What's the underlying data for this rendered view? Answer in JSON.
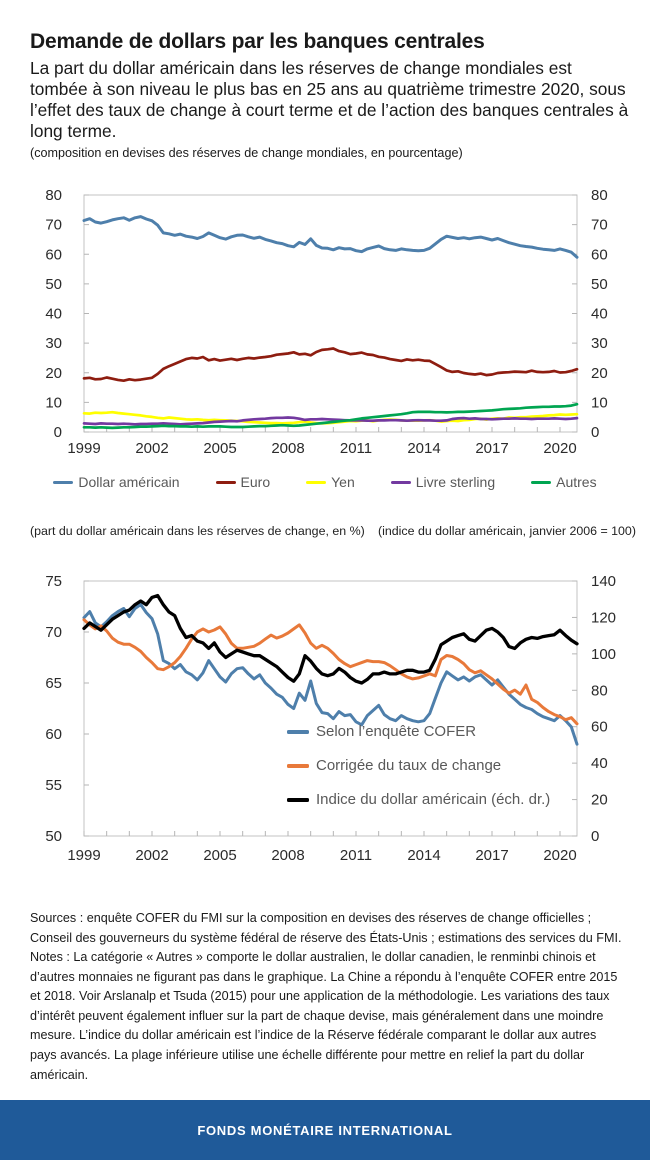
{
  "header": {
    "title": "Demande de dollars par les banques centrales",
    "subtitle": "La part du dollar américain dans les réserves de change mondiales est tombée à son niveau le plus bas en 25 ans au quatrième trimestre 2020, sous l’effet des taux de change à court terme et de l’action des banques centrales à long terme.",
    "note": "(composition en devises des réserves de change mondiales, en pourcentage)"
  },
  "captions": {
    "left": "(part du dollar américain dans les réserves de change, en %)",
    "right": "(indice du dollar américain, janvier 2006 = 100)"
  },
  "footnotes": {
    "sources": "Sources : enquête COFER du FMI sur la composition en devises des réserves de change officielles ; Conseil des gouverneurs du système fédéral de réserve des États-Unis ;  estimations des services du FMI.",
    "notes": "Notes : La catégorie « Autres » comporte le dollar australien, le dollar canadien, le renminbi chinois et d’autres monnaies ne figurant pas dans le graphique. La Chine a répondu à l’enquête COFER entre 2015 et 2018. Voir Arslanalp et Tsuda (2015) pour une application de la méthodologie. Les variations des taux d’intérêt peuvent également influer sur la part de chaque devise, mais généralement dans une moindre mesure. L’indice du dollar américain est l’indice de la Réserve fédérale comparant le dollar aux autres pays avancés. La plage inférieure utilise une échelle différente pour mettre en relief la part du dollar américain."
  },
  "footer": {
    "label": "FONDS MONÉTAIRE INTERNATIONAL",
    "background": "#1f5a99"
  },
  "chart_data": [
    {
      "type": "line",
      "x_frequency": "quarterly",
      "x_range": [
        "1999Q1",
        "2020Q4"
      ],
      "x_tick_labels": [
        "1999",
        "2002",
        "2005",
        "2008",
        "2011",
        "2014",
        "2017",
        "2020"
      ],
      "ylim": [
        0,
        80
      ],
      "ytick_step": 10,
      "axes_mirrored": true,
      "grid": false,
      "legend_position": "bottom",
      "series": [
        {
          "name": "Dollar américain",
          "color": "#4e7fab",
          "values": [
            71.4,
            72.0,
            70.9,
            70.5,
            71.0,
            71.6,
            72.0,
            72.3,
            71.5,
            72.3,
            72.7,
            71.9,
            71.3,
            69.8,
            67.2,
            66.9,
            66.4,
            66.8,
            66.1,
            65.8,
            65.3,
            66.0,
            67.2,
            66.4,
            65.6,
            65.1,
            65.9,
            66.4,
            66.5,
            65.9,
            65.4,
            65.8,
            65.0,
            64.5,
            63.9,
            63.6,
            62.9,
            62.5,
            64.0,
            63.3,
            65.2,
            63.0,
            62.1,
            62.0,
            61.5,
            62.2,
            61.8,
            61.9,
            61.2,
            60.9,
            61.8,
            62.3,
            62.8,
            61.9,
            61.5,
            61.3,
            61.8,
            61.5,
            61.3,
            61.2,
            61.3,
            62.0,
            63.5,
            65.0,
            66.1,
            65.7,
            65.3,
            65.6,
            65.2,
            65.6,
            65.8,
            65.3,
            64.8,
            65.3,
            64.6,
            63.9,
            63.4,
            62.9,
            62.6,
            62.4,
            62.0,
            61.7,
            61.5,
            61.3,
            61.8,
            61.3,
            60.7,
            59.0
          ]
        },
        {
          "name": "Euro",
          "color": "#8e1d10",
          "values": [
            18.1,
            18.3,
            17.8,
            17.9,
            18.4,
            18.0,
            17.6,
            17.3,
            17.8,
            17.5,
            17.7,
            18.0,
            18.3,
            19.6,
            21.3,
            22.2,
            23.0,
            23.8,
            24.6,
            25.0,
            24.8,
            25.3,
            24.2,
            24.6,
            24.1,
            24.4,
            24.7,
            24.3,
            24.7,
            25.0,
            24.8,
            25.1,
            25.3,
            25.6,
            26.1,
            26.3,
            26.5,
            26.9,
            26.2,
            26.4,
            25.9,
            27.0,
            27.7,
            27.9,
            28.2,
            27.3,
            26.9,
            26.3,
            26.5,
            26.8,
            26.2,
            26.0,
            25.4,
            25.1,
            24.6,
            24.3,
            24.0,
            24.5,
            24.2,
            24.4,
            24.1,
            24.0,
            23.0,
            21.9,
            20.8,
            20.3,
            20.5,
            19.9,
            19.6,
            19.4,
            19.7,
            19.2,
            19.4,
            19.9,
            20.1,
            20.2,
            20.4,
            20.3,
            20.2,
            20.7,
            20.3,
            20.2,
            20.3,
            20.6,
            20.1,
            20.2,
            20.6,
            21.2
          ]
        },
        {
          "name": "Yen",
          "color": "#ffff00",
          "values": [
            6.3,
            6.2,
            6.5,
            6.4,
            6.5,
            6.7,
            6.4,
            6.2,
            6.0,
            5.8,
            5.6,
            5.3,
            5.1,
            4.8,
            4.6,
            4.9,
            4.7,
            4.5,
            4.3,
            4.2,
            4.3,
            4.1,
            4.0,
            4.1,
            4.0,
            3.9,
            3.8,
            3.7,
            3.6,
            3.4,
            3.3,
            3.2,
            3.1,
            3.0,
            3.0,
            2.9,
            3.0,
            3.1,
            3.3,
            3.5,
            3.2,
            3.0,
            2.9,
            3.0,
            3.1,
            3.3,
            3.5,
            3.7,
            3.6,
            3.8,
            3.9,
            3.6,
            3.9,
            4.1,
            4.2,
            4.1,
            3.9,
            3.8,
            3.8,
            3.8,
            3.9,
            4.0,
            3.8,
            3.5,
            3.7,
            3.8,
            3.7,
            4.0,
            4.1,
            4.4,
            4.5,
            4.2,
            4.5,
            4.6,
            4.5,
            4.9,
            4.8,
            5.0,
            5.0,
            5.2,
            5.3,
            5.4,
            5.6,
            5.7,
            5.9,
            5.8,
            5.9,
            6.0
          ]
        },
        {
          "name": "Livre sterling",
          "color": "#7339a0",
          "values": [
            2.9,
            2.8,
            2.7,
            2.9,
            2.8,
            2.8,
            2.7,
            2.8,
            2.7,
            2.6,
            2.7,
            2.7,
            2.8,
            2.8,
            2.9,
            2.8,
            2.7,
            2.6,
            2.7,
            2.8,
            2.9,
            3.0,
            3.2,
            3.4,
            3.5,
            3.6,
            3.7,
            3.6,
            3.9,
            4.1,
            4.3,
            4.4,
            4.5,
            4.7,
            4.8,
            4.8,
            4.9,
            4.8,
            4.5,
            4.1,
            4.3,
            4.3,
            4.4,
            4.3,
            4.2,
            4.1,
            4.0,
            3.9,
            3.9,
            3.9,
            3.8,
            3.8,
            3.9,
            3.9,
            4.0,
            4.0,
            3.9,
            3.8,
            3.9,
            4.0,
            3.9,
            3.9,
            3.8,
            3.8,
            3.9,
            4.4,
            4.6,
            4.7,
            4.5,
            4.6,
            4.4,
            4.4,
            4.3,
            4.4,
            4.5,
            4.5,
            4.6,
            4.5,
            4.5,
            4.4,
            4.5,
            4.5,
            4.5,
            4.6,
            4.5,
            4.4,
            4.5,
            4.7
          ]
        },
        {
          "name": "Autres",
          "color": "#00a551",
          "values": [
            1.6,
            1.6,
            1.5,
            1.6,
            1.5,
            1.4,
            1.5,
            1.6,
            1.6,
            1.7,
            1.8,
            1.8,
            1.9,
            2.0,
            2.1,
            2.0,
            2.0,
            1.9,
            1.9,
            1.8,
            1.9,
            1.8,
            1.9,
            1.9,
            1.9,
            1.8,
            1.7,
            1.7,
            1.7,
            1.8,
            1.9,
            2.0,
            2.0,
            2.1,
            2.2,
            2.3,
            2.2,
            2.1,
            2.2,
            2.4,
            2.6,
            2.8,
            3.0,
            3.2,
            3.4,
            3.6,
            3.8,
            4.0,
            4.3,
            4.6,
            4.8,
            5.0,
            5.2,
            5.4,
            5.6,
            5.8,
            6.0,
            6.3,
            6.7,
            6.8,
            6.8,
            6.8,
            6.7,
            6.7,
            6.6,
            6.7,
            6.8,
            6.8,
            6.9,
            7.0,
            7.1,
            7.2,
            7.3,
            7.5,
            7.7,
            7.8,
            7.9,
            8.0,
            8.2,
            8.3,
            8.4,
            8.5,
            8.5,
            8.6,
            8.6,
            8.7,
            8.9,
            9.4
          ]
        }
      ]
    },
    {
      "type": "line",
      "x_frequency": "quarterly",
      "x_range": [
        "1999Q1",
        "2020Q4"
      ],
      "x_tick_labels": [
        "1999",
        "2002",
        "2005",
        "2008",
        "2011",
        "2014",
        "2017",
        "2020"
      ],
      "ylim_left": [
        50,
        75
      ],
      "ytick_step_left": 5,
      "ylim_right": [
        0,
        140
      ],
      "ytick_step_right": 20,
      "grid": false,
      "legend_position": "inside",
      "series": [
        {
          "name": "Selon l’enquête COFER",
          "axis": "left",
          "color": "#4e7fab",
          "values": [
            71.4,
            72.0,
            70.9,
            70.5,
            71.0,
            71.6,
            72.0,
            72.3,
            71.5,
            72.3,
            72.7,
            71.9,
            71.3,
            69.8,
            67.2,
            66.9,
            66.4,
            66.8,
            66.1,
            65.8,
            65.3,
            66.0,
            67.2,
            66.4,
            65.6,
            65.1,
            65.9,
            66.4,
            66.5,
            65.9,
            65.4,
            65.8,
            65.0,
            64.5,
            63.9,
            63.6,
            62.9,
            62.5,
            64.0,
            63.3,
            65.2,
            63.0,
            62.1,
            62.0,
            61.5,
            62.2,
            61.8,
            61.9,
            61.2,
            60.9,
            61.8,
            62.3,
            62.8,
            61.9,
            61.5,
            61.3,
            61.8,
            61.5,
            61.3,
            61.2,
            61.3,
            62.0,
            63.5,
            65.0,
            66.1,
            65.7,
            65.3,
            65.6,
            65.2,
            65.6,
            65.8,
            65.3,
            64.8,
            65.3,
            64.6,
            63.9,
            63.4,
            62.9,
            62.6,
            62.4,
            62.0,
            61.7,
            61.5,
            61.3,
            61.8,
            61.3,
            60.7,
            59.0
          ]
        },
        {
          "name": "Corrigée du taux de change",
          "axis": "left",
          "color": "#e8793a",
          "values": [
            71.2,
            70.7,
            70.3,
            70.6,
            70.1,
            69.4,
            69.0,
            68.8,
            68.8,
            68.5,
            68.1,
            67.5,
            67.0,
            66.4,
            66.3,
            66.6,
            67.0,
            67.6,
            68.4,
            69.3,
            70.0,
            70.3,
            70.0,
            70.2,
            70.5,
            69.8,
            68.9,
            68.4,
            68.4,
            68.5,
            68.6,
            68.9,
            69.3,
            69.7,
            69.4,
            69.6,
            69.9,
            70.3,
            70.7,
            69.9,
            68.9,
            68.4,
            68.7,
            68.4,
            67.9,
            67.3,
            66.9,
            66.6,
            66.8,
            67.0,
            67.2,
            67.1,
            67.1,
            67.0,
            66.7,
            66.3,
            65.9,
            65.6,
            65.4,
            65.5,
            65.7,
            65.9,
            65.7,
            67.3,
            67.7,
            67.6,
            67.3,
            66.9,
            66.3,
            66.0,
            66.2,
            65.8,
            65.4,
            64.9,
            64.4,
            64.0,
            64.3,
            63.9,
            64.8,
            63.4,
            63.1,
            62.6,
            62.2,
            61.9,
            61.7,
            61.4,
            61.6,
            61.0
          ]
        },
        {
          "name": "Indice du dollar américain (éch. dr.)",
          "axis": "right",
          "color": "#000000",
          "values": [
            114,
            117,
            115,
            113,
            116,
            119,
            121,
            123,
            124,
            127,
            129,
            127,
            131,
            132,
            127,
            123,
            121,
            114,
            109,
            110,
            107,
            106,
            103,
            106,
            101,
            98,
            100,
            102,
            101,
            100,
            99,
            99,
            97,
            95,
            93,
            90,
            87,
            85,
            89,
            99,
            96,
            92,
            89,
            88,
            89,
            92,
            90,
            87,
            85,
            84,
            86,
            89,
            89,
            90,
            89,
            89,
            90,
            91,
            91,
            90,
            90,
            91,
            97,
            105,
            107,
            109,
            110,
            111,
            108,
            107,
            110,
            113,
            114,
            112,
            109,
            104,
            103,
            106,
            108,
            109,
            108.5,
            109.5,
            110,
            110.5,
            113,
            110,
            107.5,
            105.5
          ]
        }
      ]
    }
  ]
}
